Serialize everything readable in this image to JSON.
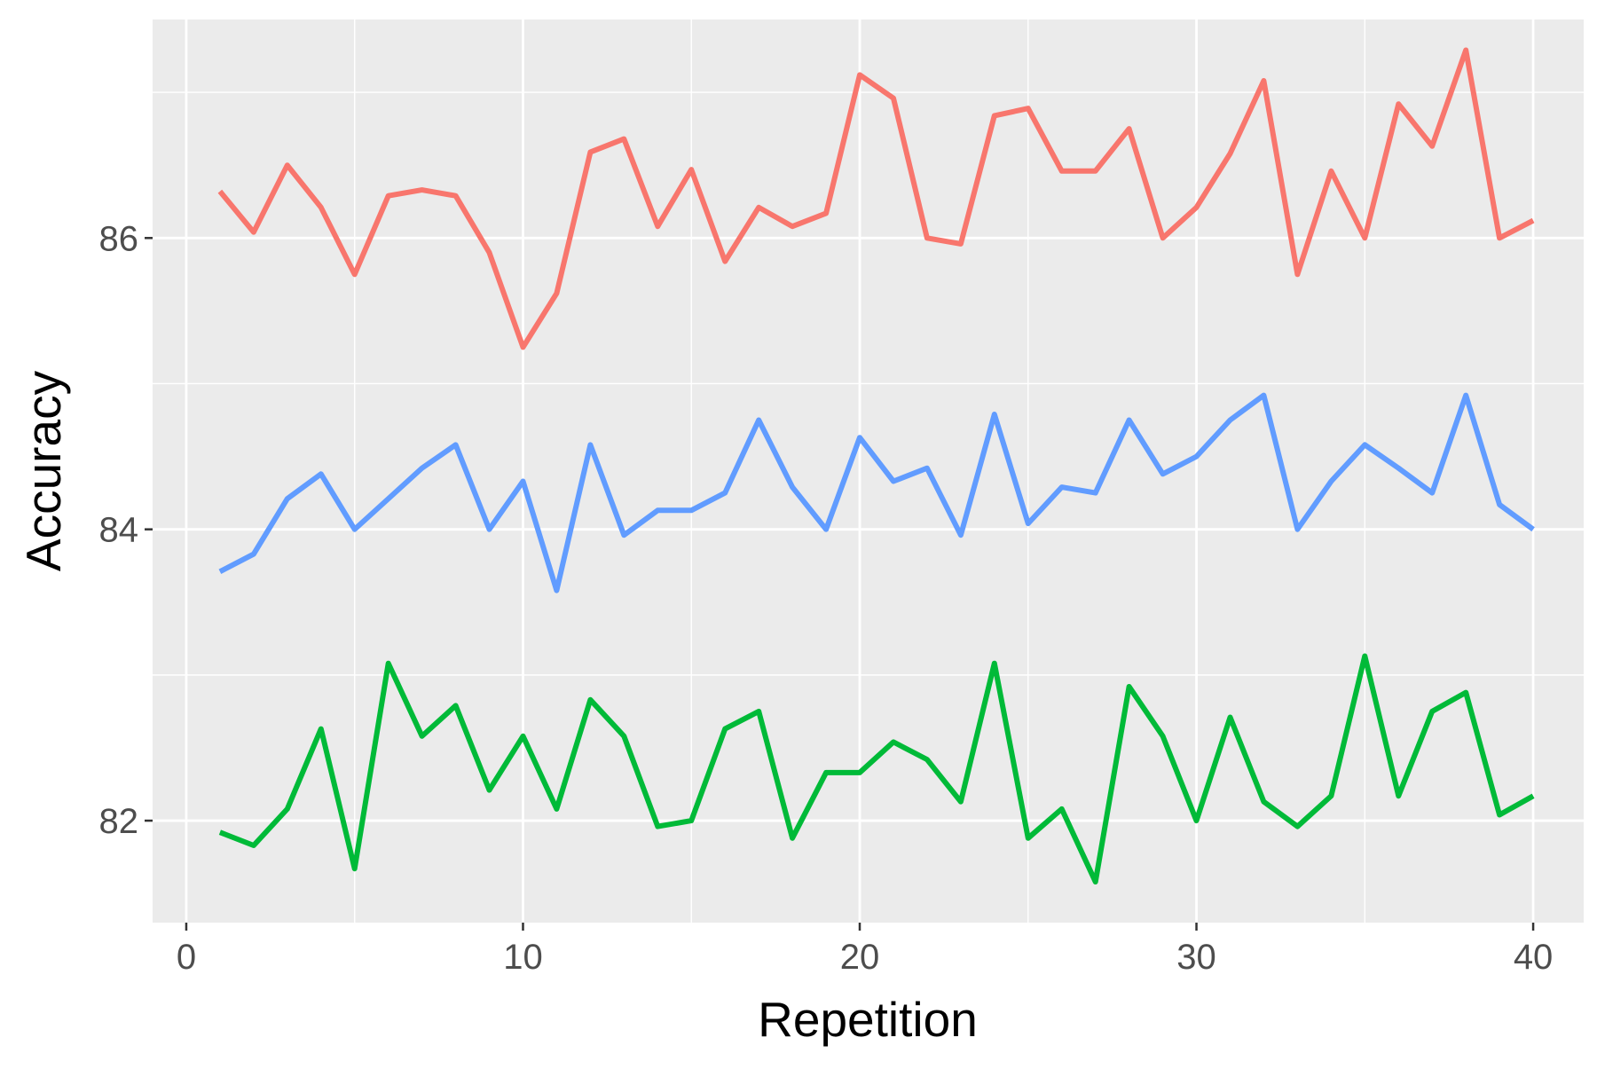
{
  "chart_data": {
    "type": "line",
    "title": "",
    "xlabel": "Repetition",
    "ylabel": "Accuracy",
    "xlim": [
      -1,
      41.5
    ],
    "ylim": [
      81.3,
      87.5
    ],
    "x_ticks": [
      0,
      10,
      20,
      30,
      40
    ],
    "y_ticks": [
      82,
      84,
      86
    ],
    "grid": true,
    "legend": "none",
    "panel_color": "#ebebeb",
    "grid_color": "#ffffff",
    "x": [
      1,
      2,
      3,
      4,
      5,
      6,
      7,
      8,
      9,
      10,
      11,
      12,
      13,
      14,
      15,
      16,
      17,
      18,
      19,
      20,
      21,
      22,
      23,
      24,
      25,
      26,
      27,
      28,
      29,
      30,
      31,
      32,
      33,
      34,
      35,
      36,
      37,
      38,
      39,
      40
    ],
    "series": [
      {
        "color": "#F8766D",
        "values": [
          86.32,
          86.04,
          86.5,
          86.21,
          85.75,
          86.29,
          86.33,
          86.29,
          85.9,
          85.25,
          85.62,
          86.59,
          86.68,
          86.08,
          86.47,
          85.84,
          86.21,
          86.08,
          86.17,
          87.12,
          86.96,
          86.0,
          85.96,
          86.84,
          86.89,
          86.46,
          86.46,
          86.75,
          86.0,
          86.21,
          86.58,
          87.08,
          85.75,
          86.46,
          86.0,
          86.92,
          86.63,
          87.29,
          86.0,
          86.12
        ]
      },
      {
        "color": "#619CFF",
        "values": [
          83.71,
          83.83,
          84.21,
          84.38,
          84.0,
          84.21,
          84.42,
          84.58,
          84.0,
          84.33,
          83.58,
          84.58,
          83.96,
          84.13,
          84.13,
          84.25,
          84.75,
          84.29,
          84.0,
          84.63,
          84.33,
          84.42,
          83.96,
          84.79,
          84.04,
          84.29,
          84.25,
          84.75,
          84.38,
          84.5,
          84.75,
          84.92,
          84.0,
          84.33,
          84.58,
          84.42,
          84.25,
          84.92,
          84.17,
          84.0
        ]
      },
      {
        "color": "#00BA38",
        "values": [
          81.92,
          81.83,
          82.08,
          82.63,
          81.67,
          83.08,
          82.58,
          82.79,
          82.21,
          82.58,
          82.08,
          82.83,
          82.58,
          81.96,
          82.0,
          82.63,
          82.75,
          81.88,
          82.33,
          82.33,
          82.54,
          82.42,
          82.13,
          83.08,
          81.88,
          82.08,
          81.58,
          82.92,
          82.58,
          82.0,
          82.71,
          82.13,
          81.96,
          82.17,
          83.13,
          82.17,
          82.75,
          82.88,
          82.04,
          82.17
        ]
      }
    ]
  }
}
